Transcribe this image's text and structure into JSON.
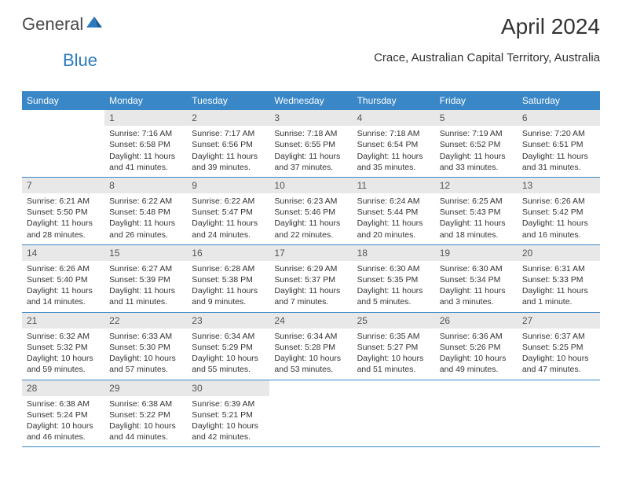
{
  "logo": {
    "text_general": "General",
    "text_blue": "Blue"
  },
  "title": "April 2024",
  "location": "Crace, Australian Capital Territory, Australia",
  "colors": {
    "header_bg": "#3a87c7",
    "header_text": "#ffffff",
    "daynum_bg": "#e8e8e8",
    "text": "#333333",
    "row_border": "#3a87c7",
    "logo_accent": "#2b7abf"
  },
  "typography": {
    "title_fontsize": 28,
    "location_fontsize": 15,
    "dow_fontsize": 12,
    "daynum_fontsize": 12,
    "body_fontsize": 10.5
  },
  "days_of_week": [
    "Sunday",
    "Monday",
    "Tuesday",
    "Wednesday",
    "Thursday",
    "Friday",
    "Saturday"
  ],
  "weeks": [
    [
      {
        "n": "",
        "sunrise": "",
        "sunset": "",
        "daylight": "",
        "empty": true
      },
      {
        "n": "1",
        "sunrise": "Sunrise: 7:16 AM",
        "sunset": "Sunset: 6:58 PM",
        "daylight": "Daylight: 11 hours and 41 minutes."
      },
      {
        "n": "2",
        "sunrise": "Sunrise: 7:17 AM",
        "sunset": "Sunset: 6:56 PM",
        "daylight": "Daylight: 11 hours and 39 minutes."
      },
      {
        "n": "3",
        "sunrise": "Sunrise: 7:18 AM",
        "sunset": "Sunset: 6:55 PM",
        "daylight": "Daylight: 11 hours and 37 minutes."
      },
      {
        "n": "4",
        "sunrise": "Sunrise: 7:18 AM",
        "sunset": "Sunset: 6:54 PM",
        "daylight": "Daylight: 11 hours and 35 minutes."
      },
      {
        "n": "5",
        "sunrise": "Sunrise: 7:19 AM",
        "sunset": "Sunset: 6:52 PM",
        "daylight": "Daylight: 11 hours and 33 minutes."
      },
      {
        "n": "6",
        "sunrise": "Sunrise: 7:20 AM",
        "sunset": "Sunset: 6:51 PM",
        "daylight": "Daylight: 11 hours and 31 minutes."
      }
    ],
    [
      {
        "n": "7",
        "sunrise": "Sunrise: 6:21 AM",
        "sunset": "Sunset: 5:50 PM",
        "daylight": "Daylight: 11 hours and 28 minutes."
      },
      {
        "n": "8",
        "sunrise": "Sunrise: 6:22 AM",
        "sunset": "Sunset: 5:48 PM",
        "daylight": "Daylight: 11 hours and 26 minutes."
      },
      {
        "n": "9",
        "sunrise": "Sunrise: 6:22 AM",
        "sunset": "Sunset: 5:47 PM",
        "daylight": "Daylight: 11 hours and 24 minutes."
      },
      {
        "n": "10",
        "sunrise": "Sunrise: 6:23 AM",
        "sunset": "Sunset: 5:46 PM",
        "daylight": "Daylight: 11 hours and 22 minutes."
      },
      {
        "n": "11",
        "sunrise": "Sunrise: 6:24 AM",
        "sunset": "Sunset: 5:44 PM",
        "daylight": "Daylight: 11 hours and 20 minutes."
      },
      {
        "n": "12",
        "sunrise": "Sunrise: 6:25 AM",
        "sunset": "Sunset: 5:43 PM",
        "daylight": "Daylight: 11 hours and 18 minutes."
      },
      {
        "n": "13",
        "sunrise": "Sunrise: 6:26 AM",
        "sunset": "Sunset: 5:42 PM",
        "daylight": "Daylight: 11 hours and 16 minutes."
      }
    ],
    [
      {
        "n": "14",
        "sunrise": "Sunrise: 6:26 AM",
        "sunset": "Sunset: 5:40 PM",
        "daylight": "Daylight: 11 hours and 14 minutes."
      },
      {
        "n": "15",
        "sunrise": "Sunrise: 6:27 AM",
        "sunset": "Sunset: 5:39 PM",
        "daylight": "Daylight: 11 hours and 11 minutes."
      },
      {
        "n": "16",
        "sunrise": "Sunrise: 6:28 AM",
        "sunset": "Sunset: 5:38 PM",
        "daylight": "Daylight: 11 hours and 9 minutes."
      },
      {
        "n": "17",
        "sunrise": "Sunrise: 6:29 AM",
        "sunset": "Sunset: 5:37 PM",
        "daylight": "Daylight: 11 hours and 7 minutes."
      },
      {
        "n": "18",
        "sunrise": "Sunrise: 6:30 AM",
        "sunset": "Sunset: 5:35 PM",
        "daylight": "Daylight: 11 hours and 5 minutes."
      },
      {
        "n": "19",
        "sunrise": "Sunrise: 6:30 AM",
        "sunset": "Sunset: 5:34 PM",
        "daylight": "Daylight: 11 hours and 3 minutes."
      },
      {
        "n": "20",
        "sunrise": "Sunrise: 6:31 AM",
        "sunset": "Sunset: 5:33 PM",
        "daylight": "Daylight: 11 hours and 1 minute."
      }
    ],
    [
      {
        "n": "21",
        "sunrise": "Sunrise: 6:32 AM",
        "sunset": "Sunset: 5:32 PM",
        "daylight": "Daylight: 10 hours and 59 minutes."
      },
      {
        "n": "22",
        "sunrise": "Sunrise: 6:33 AM",
        "sunset": "Sunset: 5:30 PM",
        "daylight": "Daylight: 10 hours and 57 minutes."
      },
      {
        "n": "23",
        "sunrise": "Sunrise: 6:34 AM",
        "sunset": "Sunset: 5:29 PM",
        "daylight": "Daylight: 10 hours and 55 minutes."
      },
      {
        "n": "24",
        "sunrise": "Sunrise: 6:34 AM",
        "sunset": "Sunset: 5:28 PM",
        "daylight": "Daylight: 10 hours and 53 minutes."
      },
      {
        "n": "25",
        "sunrise": "Sunrise: 6:35 AM",
        "sunset": "Sunset: 5:27 PM",
        "daylight": "Daylight: 10 hours and 51 minutes."
      },
      {
        "n": "26",
        "sunrise": "Sunrise: 6:36 AM",
        "sunset": "Sunset: 5:26 PM",
        "daylight": "Daylight: 10 hours and 49 minutes."
      },
      {
        "n": "27",
        "sunrise": "Sunrise: 6:37 AM",
        "sunset": "Sunset: 5:25 PM",
        "daylight": "Daylight: 10 hours and 47 minutes."
      }
    ],
    [
      {
        "n": "28",
        "sunrise": "Sunrise: 6:38 AM",
        "sunset": "Sunset: 5:24 PM",
        "daylight": "Daylight: 10 hours and 46 minutes."
      },
      {
        "n": "29",
        "sunrise": "Sunrise: 6:38 AM",
        "sunset": "Sunset: 5:22 PM",
        "daylight": "Daylight: 10 hours and 44 minutes."
      },
      {
        "n": "30",
        "sunrise": "Sunrise: 6:39 AM",
        "sunset": "Sunset: 5:21 PM",
        "daylight": "Daylight: 10 hours and 42 minutes."
      },
      {
        "n": "",
        "sunrise": "",
        "sunset": "",
        "daylight": "",
        "empty": true
      },
      {
        "n": "",
        "sunrise": "",
        "sunset": "",
        "daylight": "",
        "empty": true
      },
      {
        "n": "",
        "sunrise": "",
        "sunset": "",
        "daylight": "",
        "empty": true
      },
      {
        "n": "",
        "sunrise": "",
        "sunset": "",
        "daylight": "",
        "empty": true
      }
    ]
  ]
}
